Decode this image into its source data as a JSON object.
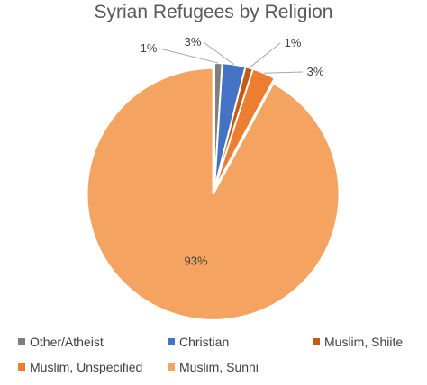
{
  "chart_data": {
    "type": "pie",
    "title": "Syrian Refugees by Religion",
    "categories": [
      "Other/Atheist",
      "Christian",
      "Muslim, Shiite",
      "Muslim, Unspecified",
      "Muslim, Sunni"
    ],
    "values": [
      1,
      3,
      1,
      3,
      93
    ],
    "data_labels": [
      "1%",
      "3%",
      "1%",
      "3%",
      "93%"
    ],
    "colors": [
      "#7f7f7f",
      "#4472c4",
      "#c55a11",
      "#ed7d31",
      "#f4a460"
    ],
    "legend_position": "bottom",
    "exploded_slice": "Muslim, Sunni"
  }
}
